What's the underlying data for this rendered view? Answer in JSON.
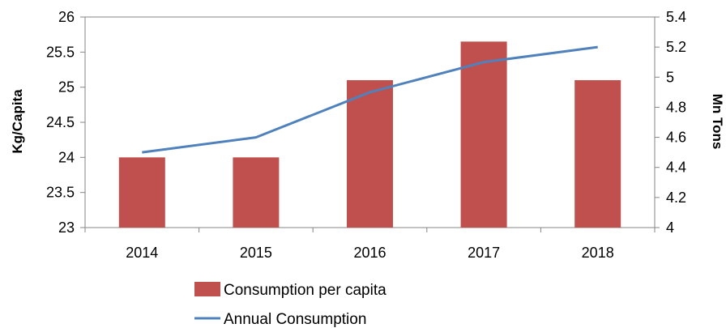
{
  "chart_data": {
    "type": "bar",
    "categories": [
      "2014",
      "2015",
      "2016",
      "2017",
      "2018"
    ],
    "series": [
      {
        "name": "Consumption per capita",
        "type": "bar",
        "axis": "left",
        "values": [
          24.0,
          24.0,
          25.1,
          25.65,
          25.1
        ],
        "color": "#C0504D"
      },
      {
        "name": "Annual Consumption",
        "type": "line",
        "axis": "right",
        "values": [
          4.5,
          4.6,
          4.9,
          5.1,
          5.2
        ],
        "color": "#4F81BD"
      }
    ],
    "y_left": {
      "label": "Kg/Capita",
      "min": 23,
      "max": 26,
      "ticks": [
        "23",
        "23.5",
        "24",
        "24.5",
        "25",
        "25.5",
        "26"
      ]
    },
    "y_right": {
      "label": "Mn Tons",
      "min": 4,
      "max": 5.4,
      "ticks": [
        "4",
        "4.2",
        "4.4",
        "4.6",
        "4.8",
        "5",
        "5.2",
        "5.4"
      ]
    },
    "grid": false,
    "legend_position": "bottom-left"
  }
}
